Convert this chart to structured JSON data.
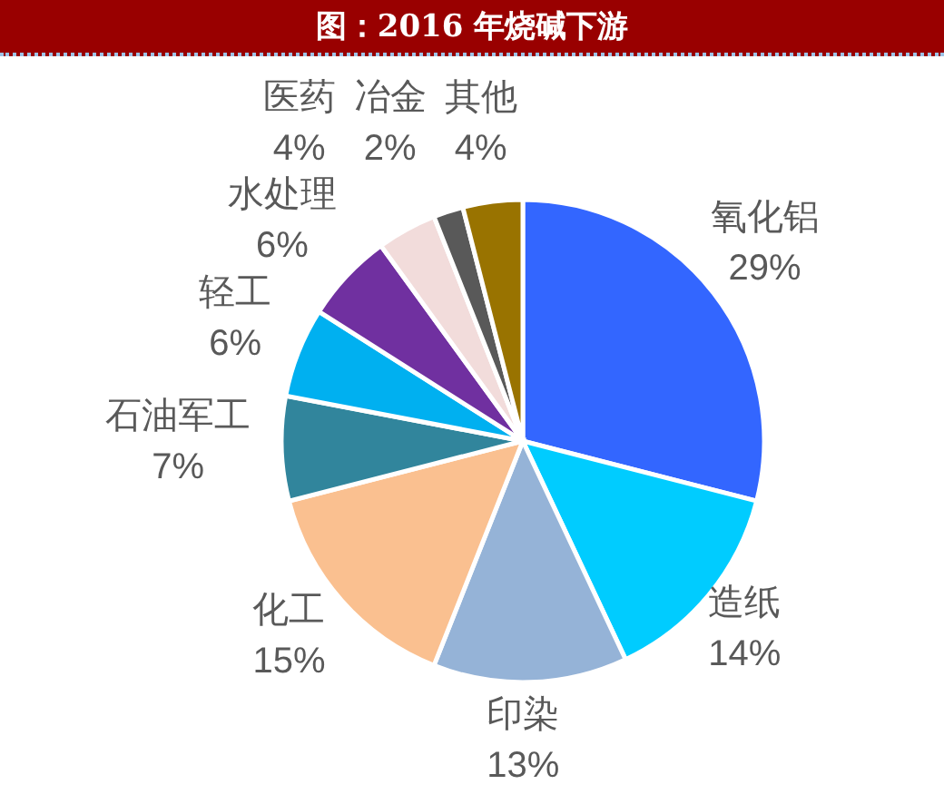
{
  "chart_data": {
    "type": "pie",
    "title": "图：2016 年烧碱下游",
    "categories": [
      "氧化铝",
      "造纸",
      "印染",
      "化工",
      "石油军工",
      "轻工",
      "水处理",
      "医药",
      "冶金",
      "其他"
    ],
    "values": [
      29,
      14,
      13,
      15,
      7,
      6,
      6,
      4,
      2,
      4
    ],
    "value_labels": [
      "29%",
      "14%",
      "13%",
      "15%",
      "7%",
      "6%",
      "6%",
      "4%",
      "2%",
      "4%"
    ],
    "colors": [
      "#3366ff",
      "#00ccff",
      "#95b3d7",
      "#fac090",
      "#31859c",
      "#00b0f0",
      "#7030a0",
      "#f2dcdb",
      "#595959",
      "#997300"
    ]
  }
}
